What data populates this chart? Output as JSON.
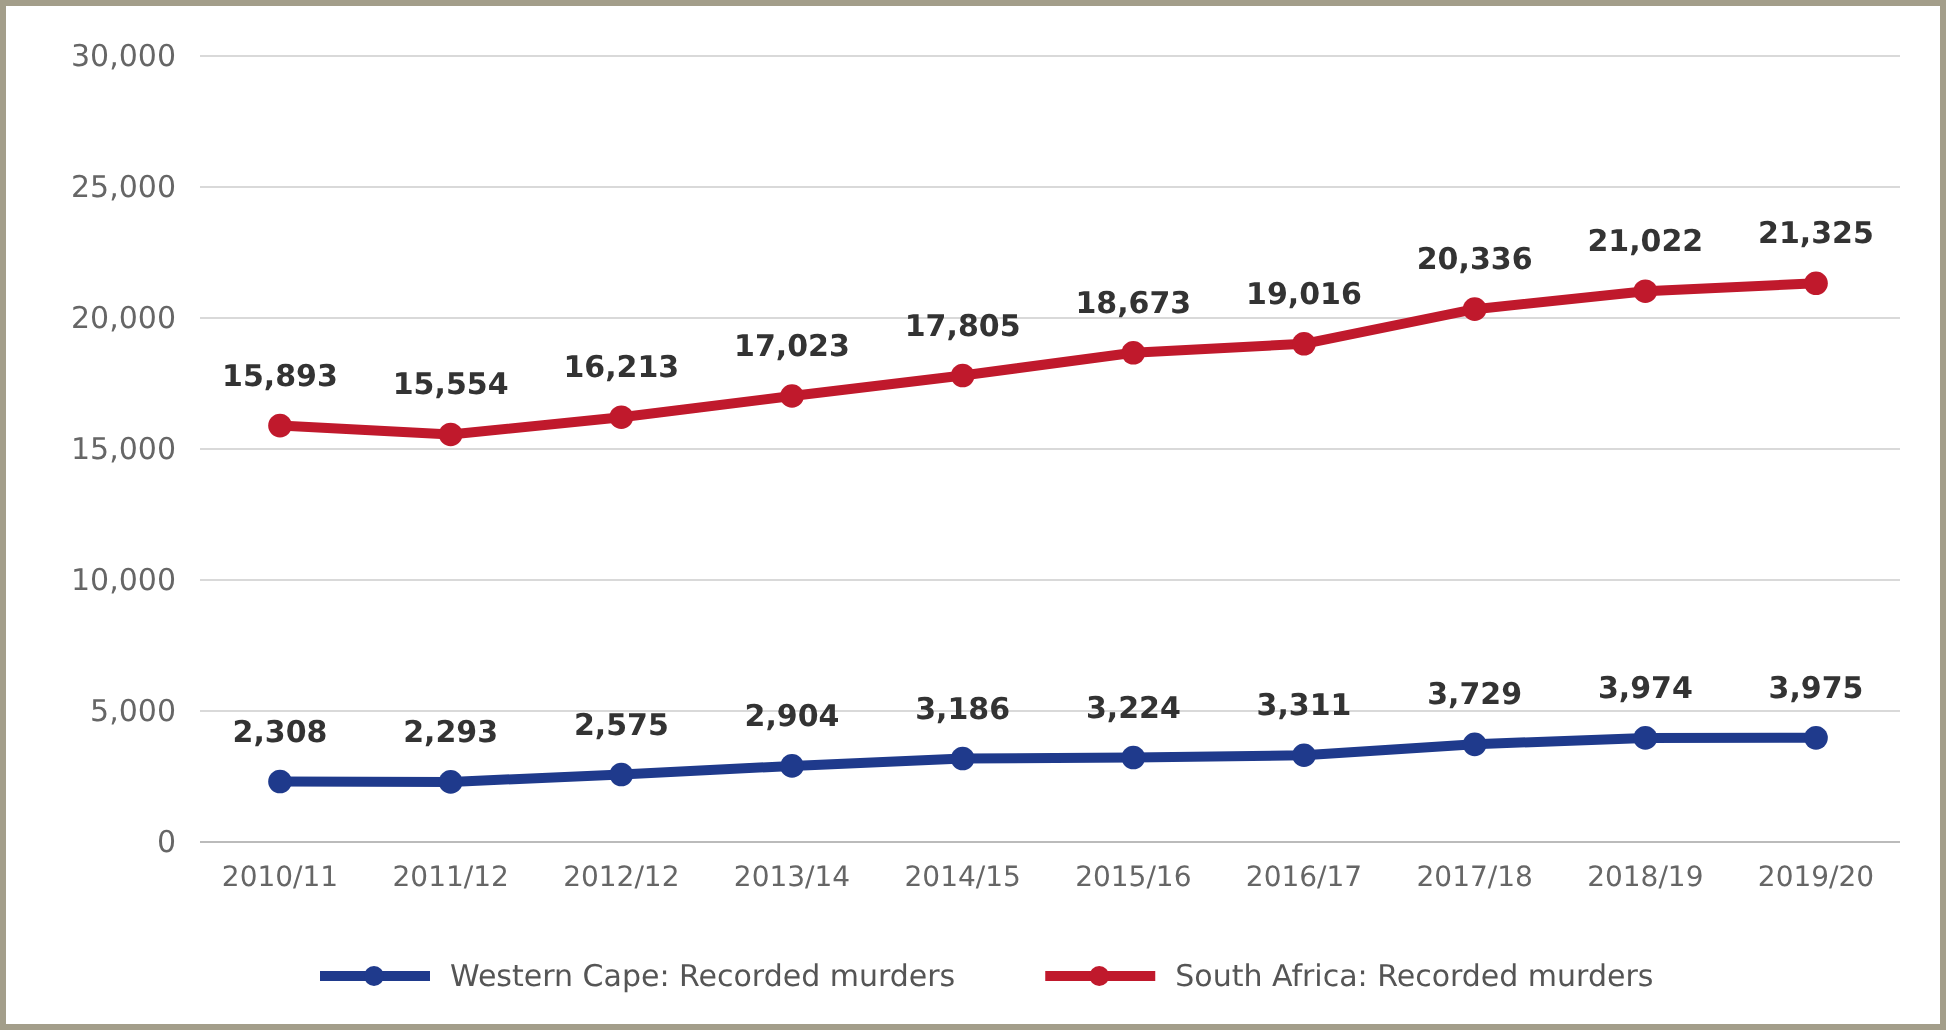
{
  "chart_data": {
    "type": "line",
    "categories": [
      "2010/11",
      "2011/12",
      "2012/12",
      "2013/14",
      "2014/15",
      "2015/16",
      "2016/17",
      "2017/18",
      "2018/19",
      "2019/20"
    ],
    "series": [
      {
        "name": "Western Cape: Recorded murders",
        "color": "#1f3a8c",
        "values": [
          2308,
          2293,
          2575,
          2904,
          3186,
          3224,
          3311,
          3729,
          3974,
          3975
        ],
        "value_labels": [
          "2,308",
          "2,293",
          "2,575",
          "2,904",
          "3,186",
          "3,224",
          "3,311",
          "3,729",
          "3,974",
          "3,975"
        ]
      },
      {
        "name": "South Africa: Recorded murders",
        "color": "#c0192c",
        "values": [
          15893,
          15554,
          16213,
          17023,
          17805,
          18673,
          19016,
          20336,
          21022,
          21325
        ],
        "value_labels": [
          "15,893",
          "15,554",
          "16,213",
          "17,023",
          "17,805",
          "18,673",
          "19,016",
          "20,336",
          "21,022",
          "21,325"
        ]
      }
    ],
    "ylim": [
      0,
      30000
    ],
    "yticks": [
      {
        "value": 0,
        "label": "0"
      },
      {
        "value": 5000,
        "label": "5,000"
      },
      {
        "value": 10000,
        "label": "10,000"
      },
      {
        "value": 15000,
        "label": "15,000"
      },
      {
        "value": 20000,
        "label": "20,000"
      },
      {
        "value": 25000,
        "label": "25,000"
      },
      {
        "value": 30000,
        "label": "30,000"
      }
    ],
    "grid": "y",
    "legend": "bottom",
    "marker": "circle",
    "line_style": "solid"
  }
}
